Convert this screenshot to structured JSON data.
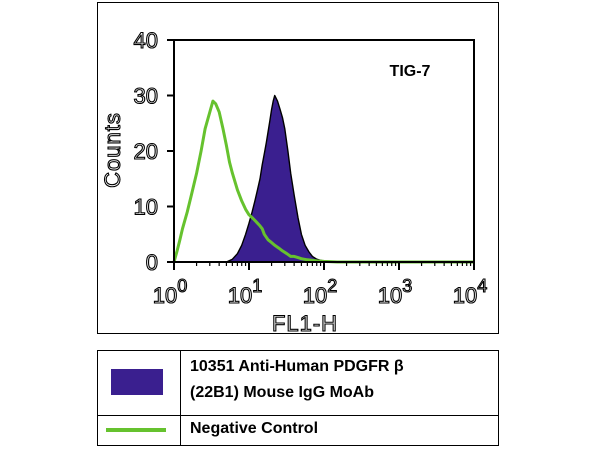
{
  "chart_data": {
    "type": "area",
    "annotation": "TIG-7",
    "xlabel": "FL1-H",
    "ylabel": "Counts",
    "xscale": "log",
    "xlim": [
      1,
      10000
    ],
    "ylim": [
      0,
      40
    ],
    "yticks": [
      0,
      10,
      20,
      30,
      40
    ],
    "xticks": [
      {
        "value": 1,
        "base": "10",
        "exp": "0"
      },
      {
        "value": 10,
        "base": "10",
        "exp": "1"
      },
      {
        "value": 100,
        "base": "10",
        "exp": "2"
      },
      {
        "value": 1000,
        "base": "10",
        "exp": "3"
      },
      {
        "value": 10000,
        "base": "10",
        "exp": "4"
      }
    ],
    "grid": false,
    "series": [
      {
        "name": "10351 Anti-Human PDGFRβ (22B1) Mouse IgG MoAb",
        "style": "filled",
        "color": "#3a1f8f",
        "x": [
          1,
          5,
          6,
          7,
          8,
          9,
          10,
          11,
          12,
          13,
          14,
          15,
          16,
          17,
          18,
          19,
          20,
          21,
          22,
          24,
          26,
          28,
          30,
          33,
          36,
          40,
          45,
          50,
          56,
          63,
          70,
          80,
          90,
          100,
          120,
          10000
        ],
        "y": [
          0,
          0,
          0.5,
          1.5,
          3,
          5,
          7,
          9,
          11,
          13,
          15,
          17.5,
          19.5,
          21.5,
          23.5,
          25.5,
          27.5,
          29,
          30,
          29,
          27.5,
          26,
          24,
          20,
          16,
          12,
          8,
          5,
          3,
          1.8,
          1,
          0.5,
          0.3,
          0.2,
          0,
          0
        ]
      },
      {
        "name": "Negative Control",
        "style": "line",
        "color": "#66c22e",
        "x": [
          1,
          1.1,
          1.2,
          1.3,
          1.5,
          1.7,
          2,
          2.3,
          2.6,
          3,
          3.3,
          3.6,
          4,
          4.5,
          5,
          5.5,
          6,
          7,
          8,
          9,
          10,
          11,
          12,
          13,
          14,
          15,
          16,
          18,
          20,
          22,
          25,
          28,
          32,
          36,
          40,
          45,
          50,
          60,
          80,
          100,
          150,
          10000
        ],
        "y": [
          0,
          2,
          4,
          6,
          9,
          12,
          16,
          20,
          24,
          27,
          29,
          28.5,
          27,
          24,
          21,
          18,
          16,
          13,
          11,
          9.5,
          8.5,
          8,
          7.5,
          7,
          6.5,
          6,
          5,
          4,
          3.5,
          3,
          2.5,
          2,
          1.5,
          1,
          1,
          0.8,
          0.6,
          0.4,
          0.2,
          0.1,
          0,
          0
        ]
      }
    ]
  },
  "legend": {
    "entry1_line1": "10351   Anti-Human PDGFR β",
    "entry1_line2": "(22B1) Mouse IgG MoAb",
    "entry2": "Negative   Control"
  }
}
